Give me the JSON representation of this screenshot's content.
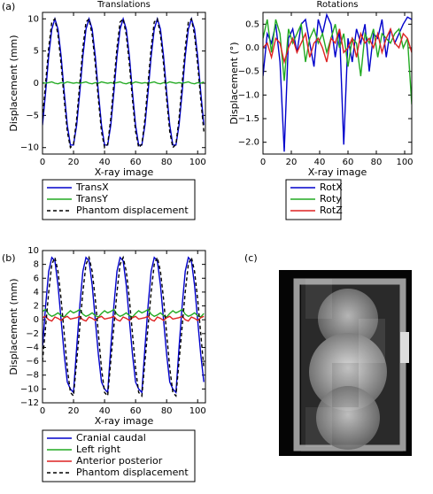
{
  "panel_labels": [
    "(a)",
    "(b)",
    "(c)"
  ],
  "chart_data": [
    {
      "type": "line",
      "title": "Translations",
      "xlabel": "X-ray image",
      "ylabel": "Displacement (mm)",
      "legend": "below",
      "x": [
        0,
        2,
        4,
        6,
        8,
        10,
        12,
        14,
        16,
        18,
        20,
        22,
        24,
        26,
        28,
        30,
        32,
        34,
        36,
        38,
        40,
        42,
        44,
        46,
        48,
        50,
        52,
        54,
        56,
        58,
        60,
        62,
        64,
        66,
        68,
        70,
        72,
        74,
        76,
        78,
        80,
        82,
        84,
        86,
        88,
        90,
        92,
        94,
        96,
        98,
        100,
        102,
        104
      ],
      "xlim": [
        0,
        105
      ],
      "xticks": [
        0,
        20,
        40,
        60,
        80,
        100
      ],
      "ylim": [
        -11,
        11
      ],
      "yticks": [
        {
          "value": -10,
          "label": "−10"
        },
        {
          "value": -5,
          "label": "−5"
        },
        0,
        5,
        10
      ],
      "series": [
        {
          "name": "TransX",
          "color": "#0000cc",
          "linestyle": "solid",
          "values": [
            -6.5,
            -1.4,
            4.2,
            8.4,
            10,
            8.4,
            4.2,
            -1.4,
            -6.5,
            -9.6,
            -9.6,
            -6.5,
            -1.4,
            4.2,
            8.4,
            10,
            8.4,
            4.2,
            -1.4,
            -6.5,
            -9.6,
            -9.6,
            -6.5,
            -1.4,
            4.2,
            8.4,
            10,
            8.4,
            4.2,
            -1.4,
            -6.5,
            -9.6,
            -9.6,
            -6.5,
            -1.4,
            4.2,
            8.4,
            10,
            8.4,
            4.2,
            -1.4,
            -6.5,
            -9.6,
            -9.6,
            -6.5,
            -1.4,
            4.2,
            8.4,
            10,
            8.4,
            4.2,
            -1.4,
            -6.5
          ]
        },
        {
          "name": "TransY",
          "color": "#22aa22",
          "linestyle": "solid",
          "values": [
            0.1,
            0.0,
            0.1,
            0.2,
            0.0,
            -0.1,
            0.1,
            0.0,
            0.2,
            0.1,
            0.0,
            0.1,
            0.0,
            0.1,
            0.2,
            0.0,
            -0.1,
            0.1,
            0.0,
            0.2,
            0.1,
            0.0,
            0.1,
            0.0,
            0.1,
            0.2,
            0.0,
            -0.1,
            0.1,
            0.0,
            0.2,
            0.1,
            0.0,
            0.1,
            0.0,
            0.1,
            0.2,
            0.0,
            -0.1,
            0.1,
            0.0,
            0.2,
            0.1,
            0.0,
            0.1,
            0.0,
            0.1,
            0.2,
            0.0,
            -0.1,
            0.1,
            0.0,
            0.2
          ]
        },
        {
          "name": "Phantom displacement",
          "color": "#000000",
          "linestyle": "dashed",
          "values": [
            -5.5,
            0,
            5.5,
            9.5,
            10,
            7.5,
            3,
            -2.5,
            -7.5,
            -10,
            -9.5,
            -5.5,
            0,
            5.5,
            9.5,
            10,
            7.5,
            3,
            -2.5,
            -7.5,
            -10,
            -9.5,
            -5.5,
            0,
            5.5,
            9.5,
            10,
            7.5,
            3,
            -2.5,
            -7.5,
            -10,
            -9.5,
            -5.5,
            0,
            5.5,
            9.5,
            10,
            7.5,
            3,
            -2.5,
            -7.5,
            -10,
            -9.5,
            -5.5,
            0,
            5.5,
            9.5,
            10,
            7.5,
            3,
            -2.5,
            -7.5
          ]
        }
      ]
    },
    {
      "type": "line",
      "title": "Rotations",
      "xlabel": "X-ray image",
      "ylabel": "Displacement (°)",
      "legend": "below",
      "x": [
        0,
        3,
        6,
        9,
        12,
        15,
        18,
        21,
        24,
        27,
        30,
        33,
        36,
        39,
        42,
        45,
        48,
        51,
        54,
        57,
        60,
        63,
        66,
        69,
        72,
        75,
        78,
        81,
        84,
        87,
        90,
        93,
        96,
        99,
        102,
        105
      ],
      "xlim": [
        0,
        105
      ],
      "xticks": [
        0,
        20,
        40,
        60,
        80,
        100
      ],
      "ylim": [
        -2.25,
        0.75
      ],
      "yticks": [
        {
          "value": -2,
          "label": "−2.0"
        },
        {
          "value": -1.5,
          "label": "−1.5"
        },
        {
          "value": -1,
          "label": "−1.0"
        },
        {
          "value": -0.5,
          "label": "−0.5"
        },
        {
          "value": 0,
          "label": "0.0"
        },
        0.5
      ],
      "series": [
        {
          "name": "RotX",
          "color": "#0000cc",
          "linestyle": "solid",
          "values": [
            -0.6,
            0.3,
            0.1,
            0.5,
            -0.3,
            -2.2,
            0.2,
            0.4,
            -0.1,
            0.5,
            0.6,
            0.1,
            -0.4,
            0.6,
            0.3,
            0.7,
            0.5,
            -0.2,
            0.4,
            -2.05,
            0.2,
            -0.3,
            0.4,
            0.1,
            0.5,
            -0.5,
            0.3,
            0.2,
            0.6,
            -0.2,
            0.4,
            0.1,
            0.3,
            0.5,
            0.65,
            0.6
          ]
        },
        {
          "name": "Roty",
          "color": "#22aa22",
          "linestyle": "solid",
          "values": [
            0.2,
            0.6,
            -0.1,
            0.6,
            0.3,
            -0.7,
            0.4,
            0.1,
            0.3,
            0.5,
            -0.3,
            0.2,
            0.4,
            0.1,
            0.3,
            -0.1,
            0.2,
            0.5,
            0.0,
            0.3,
            -0.4,
            0.2,
            0.1,
            -0.6,
            0.3,
            0.1,
            0.4,
            -0.2,
            0.3,
            0.2,
            0.1,
            0.3,
            0.4,
            0.0,
            0.2,
            -1.2
          ]
        },
        {
          "name": "RotZ",
          "color": "#dd2222",
          "linestyle": "solid",
          "values": [
            0.0,
            0.1,
            -0.2,
            0.2,
            0.1,
            -0.3,
            0.0,
            0.2,
            -0.1,
            0.1,
            0.3,
            -0.2,
            0.1,
            0.2,
            0.0,
            -0.3,
            0.2,
            0.1,
            0.4,
            -0.1,
            0.0,
            0.2,
            -0.2,
            0.3,
            0.1,
            0.2,
            0.0,
            0.3,
            -0.1,
            0.2,
            0.4,
            0.1,
            0.0,
            0.3,
            0.2,
            -0.1
          ]
        }
      ]
    },
    {
      "type": "line",
      "xlabel": "X-ray image",
      "ylabel": "Displacement (mm)",
      "legend": "below",
      "x": [
        0,
        2,
        4,
        6,
        8,
        10,
        12,
        14,
        16,
        18,
        20,
        22,
        24,
        26,
        28,
        30,
        32,
        34,
        36,
        38,
        40,
        42,
        44,
        46,
        48,
        50,
        52,
        54,
        56,
        58,
        60,
        62,
        64,
        66,
        68,
        70,
        72,
        74,
        76,
        78,
        80,
        82,
        84,
        86,
        88,
        90,
        92,
        94,
        96,
        98,
        100,
        102,
        104
      ],
      "xlim": [
        0,
        105
      ],
      "xticks": [
        0,
        20,
        40,
        60,
        80,
        100
      ],
      "ylim": [
        -12,
        10
      ],
      "yticks": [
        {
          "value": -12,
          "label": "−12"
        },
        {
          "value": -10,
          "label": "−10"
        },
        {
          "value": -8,
          "label": "−8"
        },
        {
          "value": -6,
          "label": "−6"
        },
        {
          "value": -4,
          "label": "−4"
        },
        {
          "value": -2,
          "label": "−2"
        },
        0,
        2,
        4,
        6,
        8,
        10
      ],
      "series": [
        {
          "name": "Cranial caudal",
          "color": "#0000cc",
          "linestyle": "solid",
          "values": [
            -4,
            2,
            7,
            9,
            8.5,
            5,
            0,
            -5,
            -9,
            -10,
            -10.5,
            -4,
            2,
            7,
            9,
            8.5,
            5,
            0,
            -5,
            -9,
            -10,
            -10.5,
            -4,
            2,
            7,
            9,
            8.5,
            5,
            0,
            -5,
            -9,
            -10,
            -10.5,
            -4,
            2,
            7,
            9,
            8.5,
            5,
            0,
            -5,
            -9,
            -10,
            -10.5,
            -4,
            2,
            7,
            9,
            8.5,
            5,
            0,
            -5,
            -9
          ]
        },
        {
          "name": "Left right",
          "color": "#22aa22",
          "linestyle": "solid",
          "values": [
            1.2,
            1.5,
            0.8,
            0.5,
            0.7,
            1.0,
            0.6,
            0.4,
            0.9,
            1.3,
            1.0,
            1.2,
            1.5,
            0.8,
            0.5,
            0.7,
            1.0,
            0.6,
            0.4,
            0.9,
            1.3,
            1.0,
            1.2,
            1.5,
            0.8,
            0.5,
            0.7,
            1.0,
            0.6,
            0.4,
            0.9,
            1.3,
            1.0,
            1.2,
            1.5,
            0.8,
            0.5,
            0.7,
            1.0,
            0.6,
            0.4,
            0.9,
            1.3,
            1.0,
            1.2,
            1.5,
            0.8,
            0.5,
            0.7,
            1.0,
            0.6,
            0.4,
            0.9
          ]
        },
        {
          "name": "Anterior posterior",
          "color": "#dd2222",
          "linestyle": "solid",
          "values": [
            0.3,
            0.5,
            0.0,
            -0.2,
            0.4,
            0.2,
            -0.1,
            0.3,
            0.5,
            0.1,
            0.2,
            0.3,
            0.5,
            0.0,
            -0.2,
            0.4,
            0.2,
            -0.1,
            0.3,
            0.5,
            0.1,
            0.2,
            0.3,
            0.5,
            0.0,
            -0.2,
            0.4,
            0.2,
            -0.1,
            0.3,
            0.5,
            0.1,
            0.2,
            0.3,
            0.5,
            0.0,
            -0.2,
            0.4,
            0.2,
            -0.1,
            0.3,
            0.5,
            0.1,
            0.2,
            0.3,
            0.5,
            0.0,
            -0.2,
            0.4,
            0.2,
            -0.1,
            0.3,
            0.5
          ]
        },
        {
          "name": "Phantom displacement",
          "color": "#000000",
          "linestyle": "dashed",
          "values": [
            -6,
            -1,
            4,
            8,
            9,
            7,
            3,
            -2,
            -7,
            -10.5,
            -11,
            -6,
            -1,
            4,
            8,
            9,
            7,
            3,
            -2,
            -7,
            -10.5,
            -11,
            -6,
            -1,
            4,
            8,
            9,
            7,
            3,
            -2,
            -7,
            -10.5,
            -11,
            -6,
            -1,
            4,
            8,
            9,
            7,
            3,
            -2,
            -7,
            -10.5,
            -11,
            -6,
            -1,
            4,
            8,
            9,
            7,
            3,
            -2,
            -7
          ]
        }
      ]
    }
  ]
}
